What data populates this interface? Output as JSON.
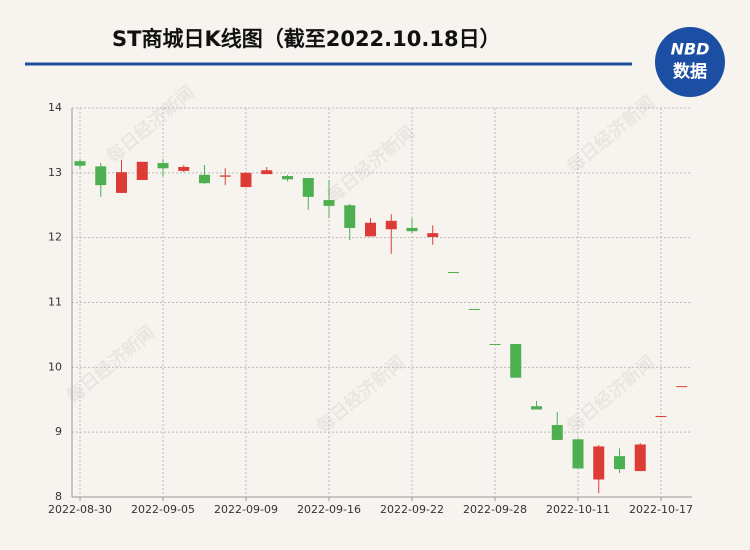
{
  "chart_data": {
    "type": "candlestick",
    "title": "ST商城日K线图（截至2022.10.18日）",
    "logo": {
      "top": "NBD",
      "bottom": "数据"
    },
    "watermark": "每日经济新闻",
    "categories": [
      "2022-08-30",
      null,
      null,
      null,
      "2022-09-05",
      null,
      null,
      null,
      "2022-09-09",
      null,
      null,
      null,
      "2022-09-16",
      null,
      null,
      null,
      "2022-09-22",
      null,
      null,
      null,
      "2022-09-28",
      null,
      null,
      null,
      "2022-10-11",
      null,
      null,
      null,
      "2022-10-17",
      null
    ],
    "open": [
      13.18,
      13.1,
      12.69,
      12.89,
      13.15,
      13.03,
      12.97,
      12.94,
      12.78,
      12.98,
      12.95,
      12.92,
      12.58,
      12.5,
      12.02,
      12.13,
      12.15,
      12.01,
      11.47,
      10.9,
      10.36,
      10.36,
      9.4,
      9.11,
      8.89,
      8.27,
      8.63,
      8.4,
      9.25,
      9.71
    ],
    "high": [
      13.21,
      13.15,
      13.2,
      13.17,
      13.21,
      13.12,
      13.12,
      13.07,
      13.01,
      13.09,
      12.97,
      12.92,
      12.89,
      12.52,
      12.3,
      12.36,
      12.3,
      12.19,
      11.47,
      10.9,
      10.36,
      10.36,
      9.48,
      9.31,
      8.9,
      8.8,
      8.75,
      8.83,
      9.25,
      9.71
    ],
    "low": [
      13.07,
      12.63,
      12.69,
      12.89,
      12.95,
      13.01,
      12.83,
      12.81,
      12.78,
      12.98,
      12.87,
      12.43,
      12.3,
      11.96,
      12.02,
      11.75,
      12.07,
      11.89,
      11.47,
      10.9,
      10.36,
      9.84,
      9.35,
      8.88,
      8.44,
      8.06,
      8.37,
      8.4,
      9.25,
      9.71
    ],
    "close": [
      13.11,
      12.81,
      13.01,
      13.17,
      13.07,
      13.09,
      12.84,
      12.96,
      13.0,
      13.04,
      12.9,
      12.63,
      12.49,
      12.15,
      12.23,
      12.26,
      12.1,
      12.07,
      11.47,
      10.9,
      10.36,
      9.84,
      9.35,
      8.88,
      8.44,
      8.78,
      8.43,
      8.81,
      9.25,
      9.71
    ],
    "up_color": "#dd3b35",
    "down_color": "#4caf50",
    "ylim": [
      8,
      14
    ],
    "yticks": [
      8,
      9,
      10,
      11,
      12,
      13,
      14
    ],
    "grid": true
  }
}
